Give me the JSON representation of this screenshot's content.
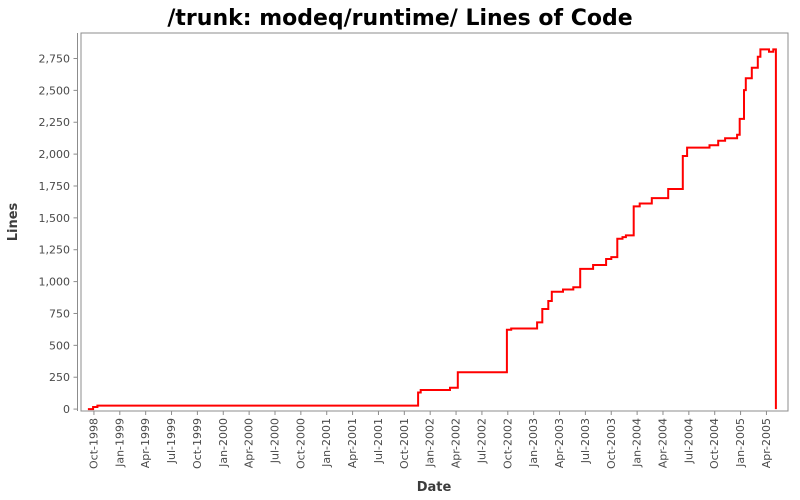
{
  "chart_data": {
    "type": "line",
    "subtype": "step-after",
    "title": "/trunk: modeq/runtime/ Lines of Code",
    "xlabel": "Date",
    "ylabel": "Lines",
    "grid": false,
    "legend": "none",
    "line_color": "#ff0000",
    "background_color": "#ffffff",
    "axis_color": "#8c8c8c",
    "tick_label_color": "#4a4a4a",
    "axis_label_color": "#3c3c3c",
    "title_color": "#000000",
    "x_unit": "months-since-Oct-1998",
    "x_domain": [
      -1.5,
      80.5
    ],
    "y_domain": [
      -15,
      2950
    ],
    "x_ticks": [
      {
        "m": 0,
        "label": "Oct-1998"
      },
      {
        "m": 3,
        "label": "Jan-1999"
      },
      {
        "m": 6,
        "label": "Apr-1999"
      },
      {
        "m": 9,
        "label": "Jul-1999"
      },
      {
        "m": 12,
        "label": "Oct-1999"
      },
      {
        "m": 15,
        "label": "Jan-2000"
      },
      {
        "m": 18,
        "label": "Apr-2000"
      },
      {
        "m": 21,
        "label": "Jul-2000"
      },
      {
        "m": 24,
        "label": "Oct-2000"
      },
      {
        "m": 27,
        "label": "Jan-2001"
      },
      {
        "m": 30,
        "label": "Apr-2001"
      },
      {
        "m": 33,
        "label": "Jul-2001"
      },
      {
        "m": 36,
        "label": "Oct-2001"
      },
      {
        "m": 39,
        "label": "Jan-2002"
      },
      {
        "m": 42,
        "label": "Apr-2002"
      },
      {
        "m": 45,
        "label": "Jul-2002"
      },
      {
        "m": 48,
        "label": "Oct-2002"
      },
      {
        "m": 51,
        "label": "Jan-2003"
      },
      {
        "m": 54,
        "label": "Apr-2003"
      },
      {
        "m": 57,
        "label": "Jul-2003"
      },
      {
        "m": 60,
        "label": "Oct-2003"
      },
      {
        "m": 63,
        "label": "Jan-2004"
      },
      {
        "m": 66,
        "label": "Apr-2004"
      },
      {
        "m": 69,
        "label": "Jul-2004"
      },
      {
        "m": 72,
        "label": "Oct-2004"
      },
      {
        "m": 75,
        "label": "Jan-2005"
      },
      {
        "m": 78,
        "label": "Apr-2005"
      }
    ],
    "y_ticks": [
      {
        "v": 0,
        "label": "0"
      },
      {
        "v": 250,
        "label": "250"
      },
      {
        "v": 500,
        "label": "500"
      },
      {
        "v": 750,
        "label": "750"
      },
      {
        "v": 1000,
        "label": "1,000"
      },
      {
        "v": 1250,
        "label": "1,250"
      },
      {
        "v": 1500,
        "label": "1,500"
      },
      {
        "v": 1750,
        "label": "1,750"
      },
      {
        "v": 2000,
        "label": "2,000"
      },
      {
        "v": 2250,
        "label": "2,250"
      },
      {
        "v": 2500,
        "label": "2,500"
      },
      {
        "v": 2750,
        "label": "2,750"
      }
    ],
    "series": [
      {
        "name": "Lines of Code",
        "points": [
          [
            -0.7,
            0
          ],
          [
            -0.1,
            16
          ],
          [
            0.4,
            27
          ],
          [
            37.6,
            130
          ],
          [
            37.9,
            150
          ],
          [
            41.3,
            168
          ],
          [
            42.2,
            289
          ],
          [
            47.9,
            623
          ],
          [
            48.4,
            632
          ],
          [
            51.4,
            680
          ],
          [
            52.0,
            785
          ],
          [
            52.7,
            848
          ],
          [
            53.1,
            920
          ],
          [
            54.4,
            938
          ],
          [
            55.6,
            956
          ],
          [
            56.4,
            1100
          ],
          [
            57.9,
            1130
          ],
          [
            59.4,
            1177
          ],
          [
            60.0,
            1192
          ],
          [
            60.7,
            1336
          ],
          [
            61.3,
            1349
          ],
          [
            61.7,
            1362
          ],
          [
            62.6,
            1590
          ],
          [
            63.3,
            1613
          ],
          [
            64.7,
            1655
          ],
          [
            66.6,
            1726
          ],
          [
            68.3,
            1985
          ],
          [
            68.8,
            2051
          ],
          [
            71.4,
            2070
          ],
          [
            72.4,
            2105
          ],
          [
            73.2,
            2125
          ],
          [
            74.6,
            2152
          ],
          [
            74.9,
            2276
          ],
          [
            75.4,
            2502
          ],
          [
            75.6,
            2595
          ],
          [
            76.3,
            2677
          ],
          [
            77.0,
            2764
          ],
          [
            77.3,
            2821
          ],
          [
            78.3,
            2803
          ],
          [
            78.8,
            2821
          ],
          [
            79.1,
            0
          ]
        ]
      }
    ]
  }
}
